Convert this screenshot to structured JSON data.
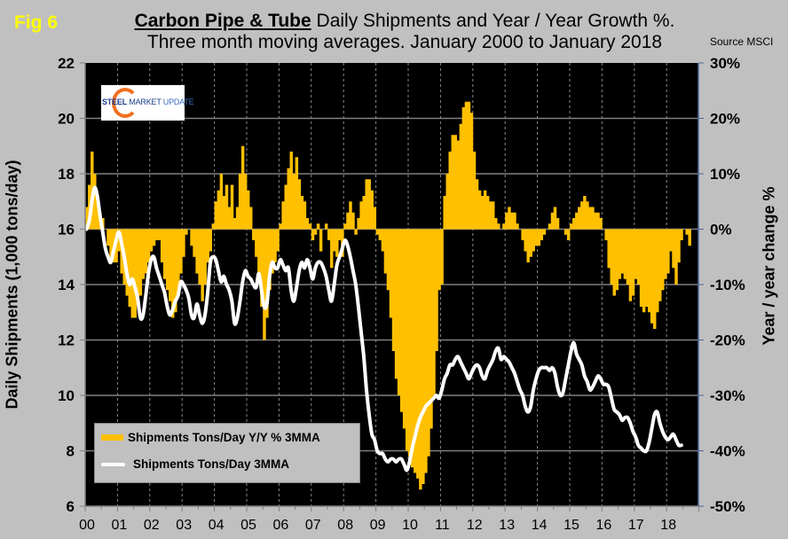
{
  "figure": {
    "fig_label": "Fig 6",
    "title_bold": "Carbon Pipe & Tube",
    "title_rest": " Daily Shipments and Year / Year Growth %.",
    "subtitle": "Three month moving averages. January 2000 to January 2018",
    "source": "Source MSCI",
    "logo": {
      "word1": "STEEL",
      "word2": "MARKET",
      "word3": "UPDATE"
    }
  },
  "chart_data": {
    "type": "bar+line",
    "title": "Carbon Pipe & Tube Daily Shipments and Year / Year Growth %. Three month moving averages. January 2000 to January 2018",
    "ylabel": "Daily Shipments (1,000 tons/day)",
    "y2label": "Year / year change %",
    "xlabel": "",
    "ylim": [
      6,
      22
    ],
    "y2lim": [
      -50,
      30
    ],
    "yticks": [
      "6",
      "8",
      "10",
      "12",
      "14",
      "16",
      "18",
      "20",
      "22"
    ],
    "y2ticks": [
      "-50%",
      "-40%",
      "-30%",
      "-20%",
      "-10%",
      "0%",
      "10%",
      "20%",
      "30%"
    ],
    "xticks": [
      "00",
      "01",
      "02",
      "03",
      "04",
      "05",
      "06",
      "07",
      "08",
      "09",
      "10",
      "11",
      "12",
      "13",
      "14",
      "15",
      "16",
      "17",
      "18"
    ],
    "x_start": "2000-01",
    "x_end": "2018-01",
    "frequency": "monthly",
    "grid": true,
    "legend_position": "bottom-left",
    "colors": {
      "background": "#000000",
      "bars": "#ffc000",
      "line": "#ffffff",
      "page": "#c0c0c0"
    },
    "series": [
      {
        "name": "Shipments Tons/Day Y/Y % 3MMA",
        "type": "bar",
        "axis": "right",
        "values": [
          4,
          8,
          14,
          10,
          6,
          3,
          2,
          0,
          -3,
          -5,
          -6,
          -6,
          -4,
          -8,
          -10,
          -12,
          -14,
          -16,
          -16,
          -13,
          -12,
          -9,
          -8,
          -6,
          -4,
          -3,
          -2,
          -2,
          -6,
          -9,
          -11,
          -13,
          -16,
          -15,
          -12,
          -8,
          -5,
          -1,
          0,
          -3,
          -5,
          -8,
          -10,
          -13,
          -10,
          -6,
          -4,
          1,
          5,
          7,
          10,
          6,
          8,
          4,
          8,
          2,
          4,
          10,
          15,
          10,
          7,
          4,
          -2,
          -5,
          -8,
          -14,
          -20,
          -16,
          -11,
          -8,
          -6,
          -4,
          1,
          5,
          8,
          11,
          14,
          10,
          13,
          9,
          6,
          5,
          2,
          1,
          -2,
          -1,
          1,
          -4,
          0,
          1,
          -2,
          -7,
          -4,
          -5,
          -2,
          -5,
          1,
          3,
          5,
          3,
          -1,
          2,
          5,
          6,
          9,
          9,
          7,
          4,
          -1,
          -2,
          -4,
          -8,
          -11,
          -16,
          -22,
          -27,
          -30,
          -33,
          -36,
          -40,
          -41,
          -43,
          -44,
          -45,
          -47,
          -46,
          -44,
          -41,
          -36,
          -30,
          -22,
          -11,
          -10,
          6,
          10,
          14,
          17,
          17,
          16,
          19,
          22,
          23,
          23,
          21,
          14,
          9,
          7,
          6,
          7,
          6,
          5,
          5,
          2,
          1,
          0,
          1,
          3,
          4,
          3,
          3,
          1,
          0,
          -2,
          -4,
          -6,
          -5,
          -4,
          -3,
          -3,
          -2,
          -1,
          0,
          1,
          3,
          4,
          2,
          0,
          0,
          -1,
          -2,
          1,
          2,
          3,
          4,
          5,
          6,
          5,
          4,
          4,
          3,
          3,
          2,
          0,
          -2,
          -7,
          -10,
          -12,
          -11,
          -9,
          -8,
          -9,
          -10,
          -13,
          -12,
          -9,
          -10,
          -14,
          -15,
          -14,
          -15,
          -17,
          -18,
          -15,
          -13,
          -11,
          -9,
          -8,
          -4,
          -7,
          -10,
          -6,
          -2,
          0,
          -1,
          -3
        ]
      },
      {
        "name": "Shipments Tons/Day 3MMA",
        "type": "line",
        "axis": "left",
        "values": [
          16.0,
          16.3,
          17.0,
          17.5,
          17.2,
          16.5,
          15.9,
          15.3,
          15.0,
          14.8,
          15.2,
          15.6,
          15.9,
          15.5,
          15.0,
          14.4,
          14.0,
          14.2,
          13.9,
          13.5,
          12.8,
          12.9,
          13.6,
          14.4,
          14.9,
          15.0,
          14.6,
          14.3,
          14.0,
          13.7,
          13.2,
          12.9,
          13.1,
          13.4,
          13.6,
          14.1,
          14.0,
          13.8,
          13.5,
          12.9,
          12.8,
          13.3,
          12.9,
          12.6,
          12.9,
          13.7,
          14.8,
          15.0,
          14.9,
          14.5,
          14.1,
          14.3,
          14.0,
          13.8,
          13.4,
          12.6,
          12.8,
          13.4,
          14.1,
          14.5,
          14.3,
          14.2,
          14.0,
          13.9,
          14.4,
          13.8,
          13.2,
          13.3,
          14.3,
          14.8,
          14.6,
          14.6,
          14.9,
          14.7,
          14.5,
          14.6,
          13.8,
          13.4,
          13.9,
          14.5,
          14.8,
          14.6,
          14.9,
          14.6,
          14.2,
          14.6,
          14.8,
          14.8,
          14.6,
          14.3,
          13.8,
          13.4,
          14.0,
          14.7,
          15.0,
          15.3,
          15.6,
          15.4,
          15.0,
          14.5,
          14.0,
          13.2,
          12.3,
          11.4,
          10.2,
          9.3,
          8.6,
          8.4,
          8.0,
          7.9,
          7.9,
          7.7,
          7.6,
          7.7,
          7.7,
          7.6,
          7.7,
          7.7,
          7.5,
          7.3,
          7.6,
          8.1,
          8.5,
          8.9,
          9.2,
          9.4,
          9.6,
          9.7,
          9.8,
          9.9,
          10.0,
          9.9,
          10.2,
          10.6,
          10.8,
          11.1,
          11.1,
          11.3,
          11.4,
          11.2,
          11.0,
          10.8,
          10.6,
          10.8,
          11.0,
          11.1,
          11.0,
          10.7,
          10.6,
          10.9,
          11.1,
          11.3,
          11.6,
          11.7,
          11.3,
          11.4,
          11.3,
          11.2,
          11.0,
          10.8,
          10.5,
          10.2,
          10.0,
          9.6,
          9.4,
          9.6,
          10.2,
          10.6,
          10.9,
          11.0,
          11.0,
          11.0,
          10.9,
          11.0,
          10.8,
          10.3,
          10.0,
          10.1,
          10.6,
          11.1,
          11.6,
          11.9,
          11.5,
          11.3,
          11.1,
          10.7,
          10.5,
          10.2,
          10.3,
          10.5,
          10.7,
          10.6,
          10.4,
          10.4,
          10.3,
          9.9,
          9.5,
          9.4,
          9.3,
          9.1,
          9.2,
          9.2,
          9.0,
          8.7,
          8.5,
          8.2,
          8.1,
          8.0,
          8.0,
          8.3,
          8.8,
          9.3,
          9.4,
          9.0,
          8.7,
          8.5,
          8.4,
          8.5,
          8.6,
          8.4,
          8.2,
          8.2
        ]
      }
    ]
  },
  "legend": {
    "items": [
      {
        "label": "Shipments Tons/Day Y/Y % 3MMA",
        "color": "#ffc000"
      },
      {
        "label": "Shipments Tons/Day 3MMA",
        "color": "#ffffff"
      }
    ]
  }
}
